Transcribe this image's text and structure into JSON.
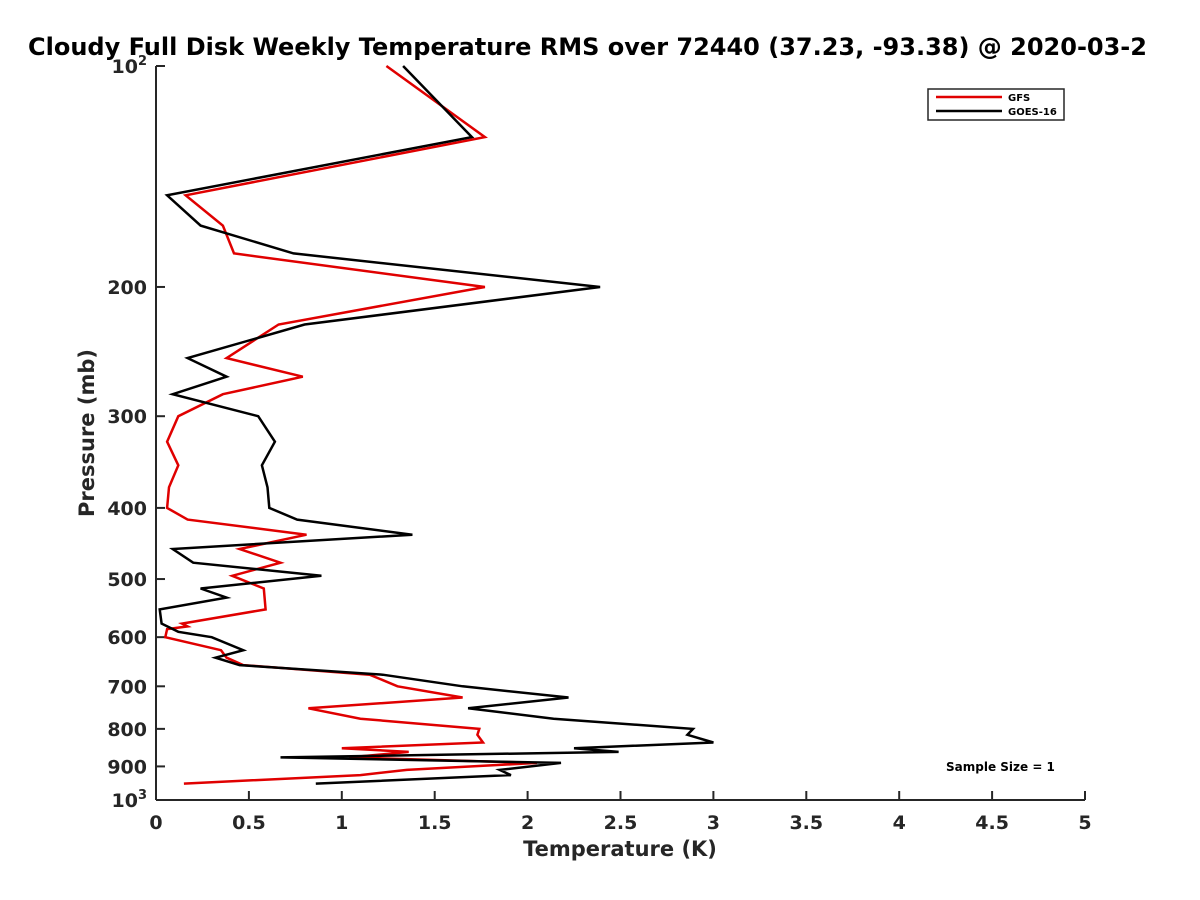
{
  "chart_data": {
    "type": "line",
    "title": "Cloudy Full Disk Weekly Temperature RMS over 72440 (37.23, -93.38) @ 2020-03-2",
    "xlabel": "Temperature (K)",
    "ylabel": "Pressure (mb)",
    "xlim": [
      0,
      5
    ],
    "ylim": [
      1000,
      100
    ],
    "y_scale": "log",
    "y_reversed": true,
    "x_ticks": [
      "0",
      "0.5",
      "1",
      "1.5",
      "2",
      "2.5",
      "3",
      "3.5",
      "4",
      "4.5",
      "5"
    ],
    "y_ticks": [
      {
        "value": 100,
        "base": "10",
        "exp": "2"
      },
      {
        "value": 200,
        "label": "200"
      },
      {
        "value": 300,
        "label": "300"
      },
      {
        "value": 400,
        "label": "400"
      },
      {
        "value": 500,
        "label": "500"
      },
      {
        "value": 600,
        "label": "600"
      },
      {
        "value": 700,
        "label": "700"
      },
      {
        "value": 800,
        "label": "800"
      },
      {
        "value": 900,
        "label": "900"
      },
      {
        "value": 1000,
        "base": "10",
        "exp": "3"
      }
    ],
    "grid": false,
    "legend_position": "top-right",
    "annotation": "Sample Size = 1",
    "series": [
      {
        "name": "GFS",
        "color": "#e00000",
        "points": [
          [
            1.24,
            100
          ],
          [
            1.77,
            125
          ],
          [
            0.16,
            150
          ],
          [
            0.36,
            165
          ],
          [
            0.42,
            180
          ],
          [
            1.77,
            200
          ],
          [
            0.66,
            225
          ],
          [
            0.38,
            250
          ],
          [
            0.79,
            265
          ],
          [
            0.36,
            280
          ],
          [
            0.12,
            300
          ],
          [
            0.06,
            325
          ],
          [
            0.12,
            350
          ],
          [
            0.07,
            375
          ],
          [
            0.06,
            400
          ],
          [
            0.17,
            415
          ],
          [
            0.81,
            435
          ],
          [
            0.45,
            455
          ],
          [
            0.67,
            475
          ],
          [
            0.41,
            495
          ],
          [
            0.58,
            515
          ],
          [
            0.59,
            550
          ],
          [
            0.14,
            575
          ],
          [
            0.17,
            580
          ],
          [
            0.06,
            585
          ],
          [
            0.05,
            600
          ],
          [
            0.35,
            625
          ],
          [
            0.38,
            640
          ],
          [
            0.47,
            655
          ],
          [
            1.15,
            675
          ],
          [
            1.3,
            700
          ],
          [
            1.65,
            725
          ],
          [
            0.82,
            750
          ],
          [
            1.1,
            775
          ],
          [
            1.74,
            800
          ],
          [
            1.73,
            815
          ],
          [
            1.76,
            835
          ],
          [
            1.0,
            850
          ],
          [
            1.36,
            860
          ],
          [
            1.04,
            875
          ],
          [
            2.05,
            890
          ],
          [
            1.35,
            910
          ],
          [
            1.1,
            925
          ],
          [
            0.15,
            950
          ]
        ]
      },
      {
        "name": "GOES-16",
        "color": "#000000",
        "points": [
          [
            1.33,
            100
          ],
          [
            1.7,
            125
          ],
          [
            0.06,
            150
          ],
          [
            0.24,
            165
          ],
          [
            0.74,
            180
          ],
          [
            2.39,
            200
          ],
          [
            0.8,
            225
          ],
          [
            0.17,
            250
          ],
          [
            0.38,
            265
          ],
          [
            0.09,
            280
          ],
          [
            0.55,
            300
          ],
          [
            0.64,
            325
          ],
          [
            0.57,
            350
          ],
          [
            0.6,
            375
          ],
          [
            0.61,
            400
          ],
          [
            0.76,
            415
          ],
          [
            1.38,
            435
          ],
          [
            0.09,
            455
          ],
          [
            0.2,
            475
          ],
          [
            0.89,
            495
          ],
          [
            0.24,
            515
          ],
          [
            0.38,
            530
          ],
          [
            0.02,
            550
          ],
          [
            0.03,
            575
          ],
          [
            0.12,
            590
          ],
          [
            0.3,
            600
          ],
          [
            0.47,
            625
          ],
          [
            0.32,
            640
          ],
          [
            0.45,
            655
          ],
          [
            1.22,
            675
          ],
          [
            1.65,
            700
          ],
          [
            2.22,
            725
          ],
          [
            1.68,
            750
          ],
          [
            2.14,
            775
          ],
          [
            2.89,
            800
          ],
          [
            2.86,
            815
          ],
          [
            3.0,
            835
          ],
          [
            2.25,
            850
          ],
          [
            2.49,
            860
          ],
          [
            0.67,
            875
          ],
          [
            2.18,
            890
          ],
          [
            1.85,
            910
          ],
          [
            1.91,
            925
          ],
          [
            0.86,
            950
          ]
        ]
      }
    ]
  }
}
